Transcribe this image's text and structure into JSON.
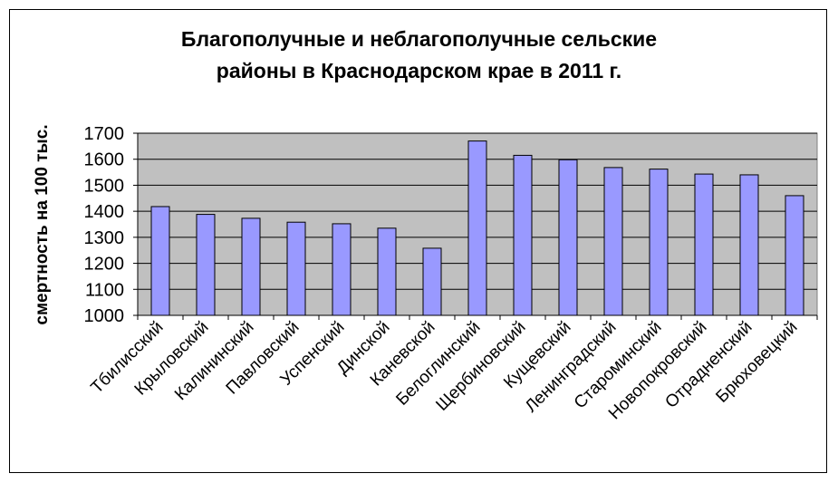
{
  "chart_data": {
    "type": "bar",
    "title": [
      "Благополучные и неблагополучные сельские",
      "районы в Краснодарском крае в 2011 г."
    ],
    "xlabel": "",
    "ylabel": "смертность на 100 тыс.",
    "ylim": [
      1000,
      1700
    ],
    "yticks": [
      "1700",
      "1600",
      "1500",
      "1400",
      "1300",
      "1200",
      "1100",
      "1000"
    ],
    "categories": [
      "Тбилисский",
      "Крыловский",
      "Калининский",
      "Павловский",
      "Успенский",
      "Динской",
      "Каневской",
      "Белоглинский",
      "Щербиновский",
      "Кущевский",
      "Ленинградский",
      "Староминский",
      "Новопокровский",
      "Отрадненский",
      "Брюховецкий"
    ],
    "values": [
      1418,
      1388,
      1373,
      1358,
      1352,
      1335,
      1258,
      1670,
      1615,
      1598,
      1568,
      1562,
      1543,
      1540,
      1460
    ],
    "grid": true,
    "legend": "none",
    "colors": {
      "bar": "#9999ff",
      "plot_bg": "#c0c0c0",
      "outline": "#000000"
    }
  }
}
